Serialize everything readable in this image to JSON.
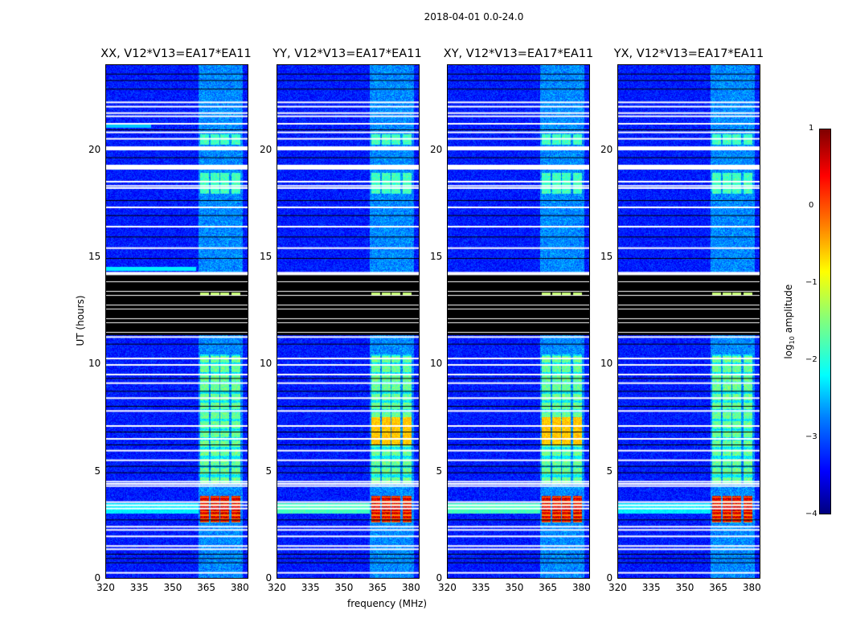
{
  "chart_data": {
    "type": "heatmap",
    "suptitle": "2018-04-01 0.0-24.0",
    "panels": [
      {
        "title": "XX, V12*V13=EA17*EA11"
      },
      {
        "title": "YY, V12*V13=EA17*EA11"
      },
      {
        "title": "XY, V12*V13=EA17*EA11"
      },
      {
        "title": "YX, V12*V13=EA17*EA11"
      }
    ],
    "xlabel": "frequency (MHz)",
    "ylabel": "UT (hours)",
    "xlim": [
      320,
      384
    ],
    "ylim": [
      0,
      24
    ],
    "xticks": [
      "320",
      "335",
      "350",
      "365",
      "380"
    ],
    "xtick_values": [
      320,
      335,
      350,
      365,
      380
    ],
    "yticks": [
      "0",
      "5",
      "10",
      "15",
      "20"
    ],
    "ytick_values": [
      0,
      5,
      10,
      15,
      20
    ],
    "colorbar": {
      "label": "log",
      "label_sub": "10",
      "label_rest": " amplitude",
      "ticks": [
        "1",
        "0",
        "−1",
        "−2",
        "−3",
        "−4"
      ],
      "tick_values": [
        1,
        0,
        -1,
        -2,
        -3,
        -4
      ],
      "range": [
        -4,
        1
      ],
      "colormap": "jet"
    },
    "features": {
      "rfi_band_mhz": [
        361,
        381
      ],
      "flagged_block_ut": [
        11.4,
        14.3
      ],
      "bright_rfi_ut": [
        2.7,
        3.9
      ],
      "active_rfi_ut": [
        4.5,
        10.5
      ]
    }
  }
}
